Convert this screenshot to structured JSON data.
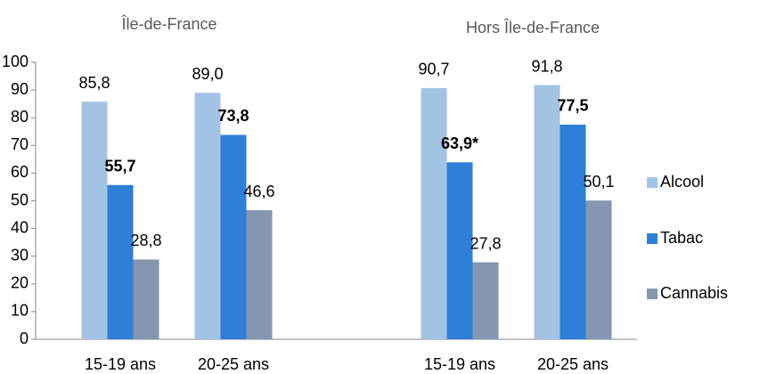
{
  "chart_data": {
    "type": "bar",
    "group_labels": [
      "Île-de-France",
      "Hors Île-de-France"
    ],
    "categories": [
      "15-19 ans",
      "20-25 ans",
      null,
      "15-19 ans",
      "20-25 ans"
    ],
    "series": [
      {
        "name": "Alcool",
        "color": "#a3c3e5",
        "values": [
          85.8,
          89.0,
          null,
          90.7,
          91.8
        ],
        "value_labels": [
          "85,8",
          "89,0",
          null,
          "90,7",
          "91,8"
        ]
      },
      {
        "name": "Tabac",
        "color": "#2e7fd8",
        "bold_labels": true,
        "values": [
          55.7,
          73.8,
          null,
          63.9,
          77.5
        ],
        "value_labels": [
          "55,7",
          "73,8",
          null,
          "63,9*",
          "77,5"
        ]
      },
      {
        "name": "Cannabis",
        "color": "#8496b0",
        "values": [
          28.8,
          46.6,
          null,
          27.8,
          50.1
        ],
        "value_labels": [
          "28,8",
          "46,6",
          null,
          "27,8",
          "50,1"
        ]
      }
    ],
    "ylim": [
      0,
      100
    ],
    "yticks": [
      0,
      10,
      20,
      30,
      40,
      50,
      60,
      70,
      80,
      90,
      100
    ],
    "grid": false,
    "legend": "right"
  }
}
